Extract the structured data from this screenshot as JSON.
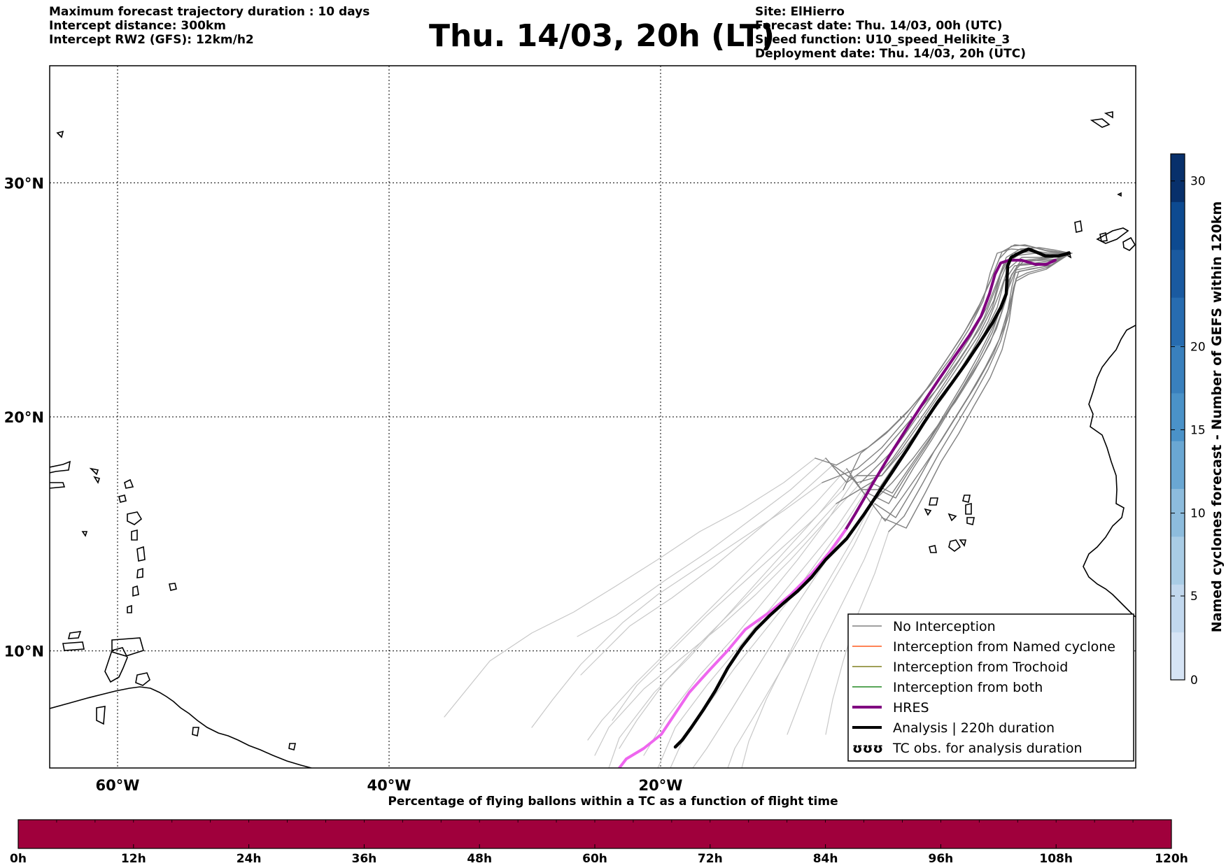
{
  "header": {
    "left": [
      "Maximum forecast trajectory duration : 10 days",
      "Intercept distance: 300km",
      "Intercept RW2 (GFS):  12km/h2"
    ],
    "title": "Thu. 14/03, 20h (LT)",
    "right": [
      "Site: ElHierro",
      "Forecast date: Thu. 14/03, 00h (UTC)",
      "Speed function: U10_speed_Helikite_3",
      "Deployment date: Thu. 14/03, 20h (UTC)"
    ]
  },
  "map": {
    "lon_range": [
      -65,
      15
    ],
    "lat_range": [
      5,
      35
    ],
    "lon_ticks": [
      {
        "value": -60,
        "label": "60°W"
      },
      {
        "value": -40,
        "label": "40°W"
      },
      {
        "value": -20,
        "label": "20°W"
      }
    ],
    "lat_ticks": [
      {
        "value": 30,
        "label": "30°N"
      },
      {
        "value": 20,
        "label": "20°N"
      },
      {
        "value": 10,
        "label": "10°N"
      }
    ],
    "colors": {
      "no_interception": "#808080",
      "named_cyclone": "#ff5a1e",
      "trochoid": "#808020",
      "both": "#228822",
      "hres": "#800080",
      "hres_late": "#ee66ee",
      "analysis": "#000000",
      "ensemble_late": "#c8c8c8"
    },
    "legend": [
      {
        "key": "no_interception",
        "label": "No Interception"
      },
      {
        "key": "named_cyclone",
        "label": "Interception from Named cyclone"
      },
      {
        "key": "trochoid",
        "label": "Interception from Trochoid"
      },
      {
        "key": "both",
        "label": "Interception from both"
      },
      {
        "key": "hres",
        "label": "HRES"
      },
      {
        "key": "analysis",
        "label": "Analysis | 220h duration"
      },
      {
        "key": "tc_obs",
        "label": "TC obs. for analysis duration",
        "symbol": "ʊʊʊ"
      }
    ]
  },
  "colorbar_right": {
    "label": "Named cyclones forecast - Number of GEFS within 120km",
    "ticks": [
      "0",
      "5",
      "10",
      "15",
      "20",
      "30"
    ],
    "colors": [
      "#d6e4f5",
      "#c2d8ee",
      "#a9cce5",
      "#8dbcdd",
      "#6aa7d3",
      "#4a92c8",
      "#3980bd",
      "#276cb0",
      "#1a5aa0",
      "#0d4a90",
      "#08306b"
    ]
  },
  "colorbar_bottom": {
    "title": "Percentage of flying ballons within a TC as a function of flight time",
    "ticks": [
      "0h",
      "12h",
      "24h",
      "36h",
      "48h",
      "60h",
      "72h",
      "84h",
      "96h",
      "108h",
      "120h"
    ],
    "fill": "#a0003c"
  }
}
